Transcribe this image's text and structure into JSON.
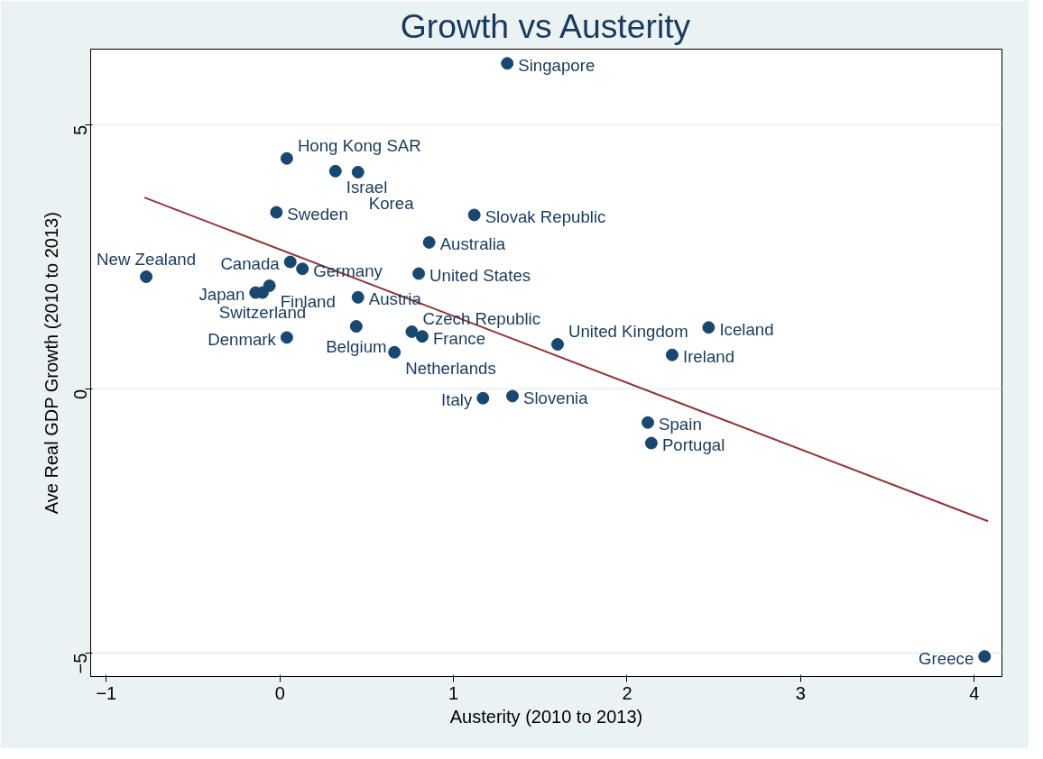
{
  "chart_data": {
    "type": "scatter",
    "title": "Growth vs Austerity",
    "xlabel": "Austerity (2010 to 2013)",
    "ylabel": "Ave Real GDP Growth (2010 to 2013)",
    "xlim": [
      -1.09,
      4.16
    ],
    "ylim": [
      -5.44,
      6.44
    ],
    "xticks": [
      -1,
      0,
      1,
      2,
      3,
      4
    ],
    "yticks": [
      -5,
      0,
      5
    ],
    "grid": "y",
    "marker": "circle",
    "series": [
      {
        "color": "#1a476f",
        "x": [
          1.31,
          0.04,
          0.32,
          0.45,
          -0.02,
          1.12,
          0.86,
          0.06,
          0.13,
          -0.77,
          0.8,
          -0.06,
          -0.14,
          -0.1,
          0.45,
          0.44,
          0.76,
          0.82,
          0.04,
          0.66,
          1.6,
          2.47,
          2.26,
          1.17,
          1.34,
          2.12,
          2.14,
          4.06
        ],
        "values": [
          6.17,
          4.37,
          4.13,
          4.11,
          3.35,
          3.3,
          2.78,
          2.41,
          2.28,
          2.13,
          2.19,
          1.96,
          1.83,
          1.83,
          1.74,
          1.19,
          1.09,
          1.0,
          0.98,
          0.7,
          0.85,
          1.17,
          0.65,
          -0.17,
          -0.13,
          -0.63,
          -1.02,
          -5.06
        ]
      },
      {
        "type": "line",
        "marker": "none",
        "color": "#90353b",
        "x": [
          -0.78,
          4.08
        ],
        "values": [
          3.63,
          -2.5
        ]
      }
    ],
    "annotations": [
      {
        "text": "Singapore",
        "x": 1.31,
        "y": 6.17
      },
      {
        "text": "Hong Kong SAR",
        "x": 0.04,
        "y": 4.37
      },
      {
        "text": "Israel",
        "x": 0.32,
        "y": 4.13
      },
      {
        "text": "Korea",
        "x": 0.45,
        "y": 4.11
      },
      {
        "text": "Sweden",
        "x": -0.02,
        "y": 3.35
      },
      {
        "text": "Slovak Republic",
        "x": 1.12,
        "y": 3.3
      },
      {
        "text": "Australia",
        "x": 0.86,
        "y": 2.78
      },
      {
        "text": "Canada",
        "x": 0.06,
        "y": 2.41
      },
      {
        "text": "Germany",
        "x": 0.13,
        "y": 2.28
      },
      {
        "text": "New Zealand",
        "x": -0.77,
        "y": 2.13
      },
      {
        "text": "United States",
        "x": 0.8,
        "y": 2.19
      },
      {
        "text": "Finland",
        "x": -0.06,
        "y": 1.96
      },
      {
        "text": "Japan",
        "x": -0.14,
        "y": 1.83
      },
      {
        "text": "Switzerland",
        "x": -0.1,
        "y": 1.83
      },
      {
        "text": "Austria",
        "x": 0.45,
        "y": 1.74
      },
      {
        "text": "Belgium",
        "x": 0.44,
        "y": 1.19
      },
      {
        "text": "Czech Republic",
        "x": 0.76,
        "y": 1.09
      },
      {
        "text": "France",
        "x": 0.82,
        "y": 1.0
      },
      {
        "text": "Denmark",
        "x": 0.04,
        "y": 0.98
      },
      {
        "text": "Netherlands",
        "x": 0.66,
        "y": 0.7
      },
      {
        "text": "United Kingdom",
        "x": 1.6,
        "y": 0.85
      },
      {
        "text": "Iceland",
        "x": 2.47,
        "y": 1.17
      },
      {
        "text": "Ireland",
        "x": 2.26,
        "y": 0.65
      },
      {
        "text": "Italy",
        "x": 1.17,
        "y": -0.17
      },
      {
        "text": "Slovenia",
        "x": 1.34,
        "y": -0.13
      },
      {
        "text": "Spain",
        "x": 2.12,
        "y": -0.63
      },
      {
        "text": "Portugal",
        "x": 2.14,
        "y": -1.02
      },
      {
        "text": "Greece",
        "x": 4.06,
        "y": -5.06
      }
    ]
  }
}
